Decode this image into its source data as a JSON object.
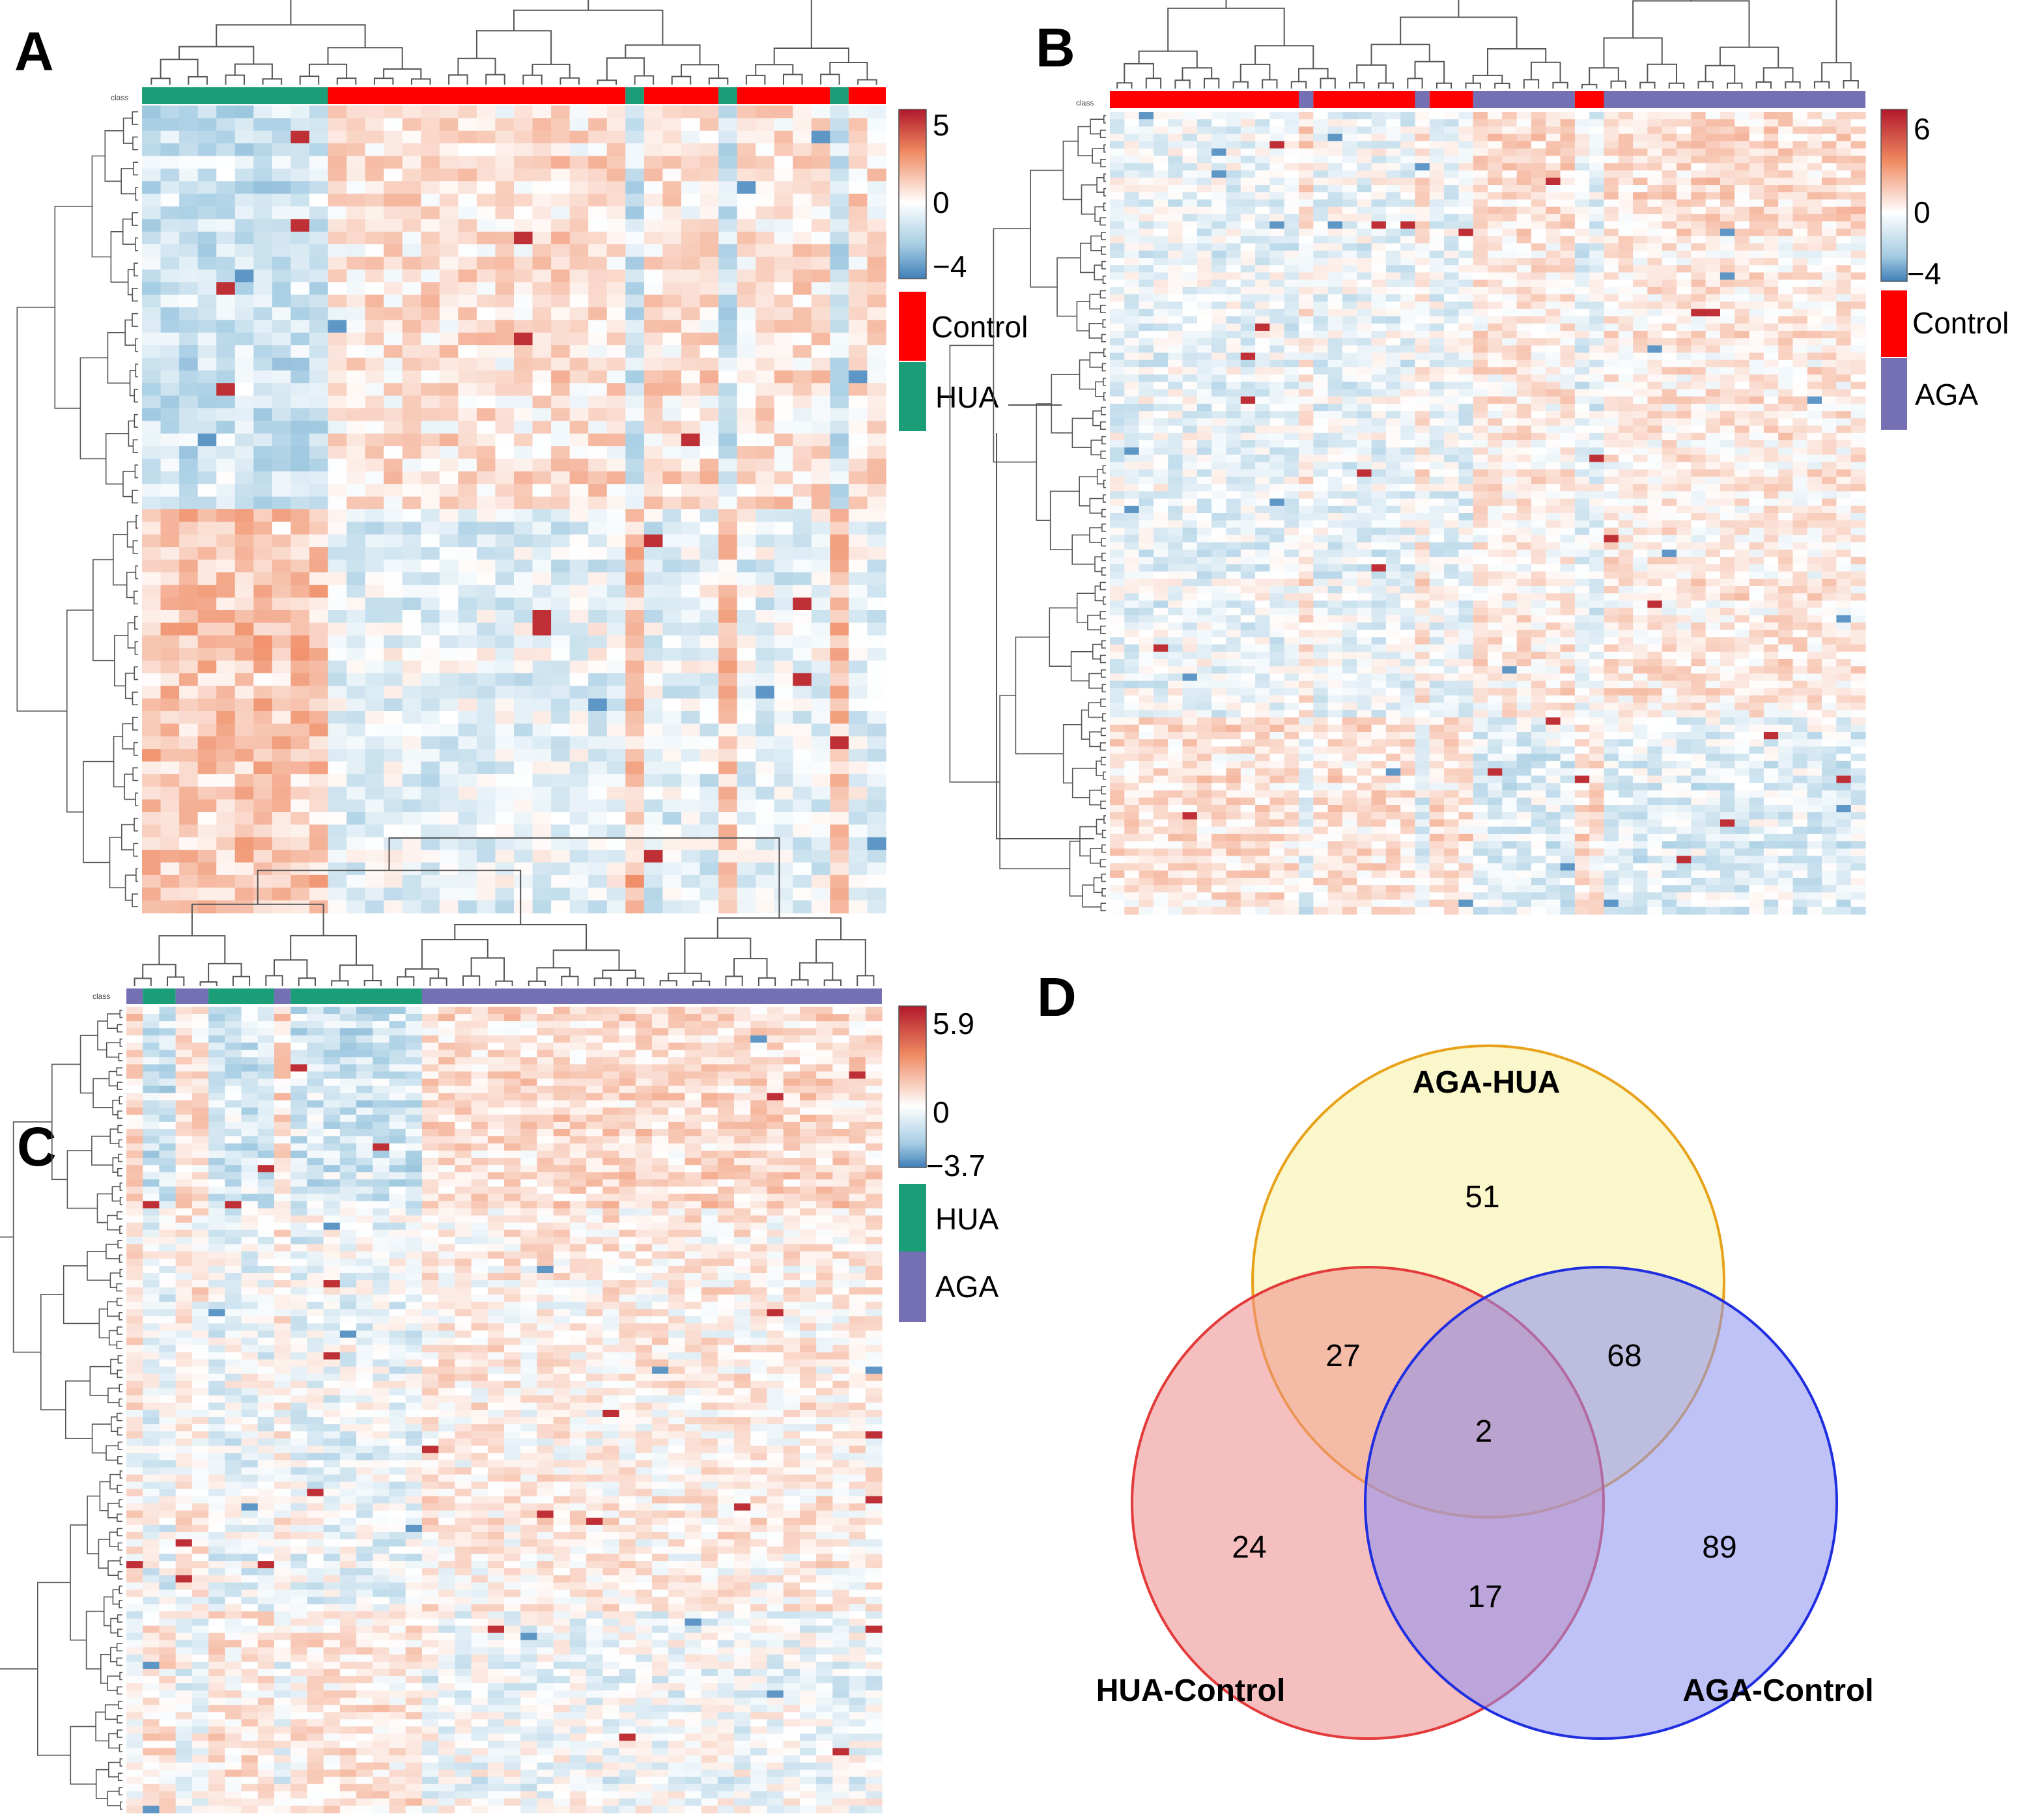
{
  "panels": {
    "A": "A",
    "B": "B",
    "C": "C",
    "D": "D"
  },
  "class_tag": "class",
  "chart_data": [
    {
      "type": "heatmap",
      "panel": "A",
      "rows": 64,
      "group_blocks": [
        {
          "label": "HUA",
          "count": 10
        },
        {
          "label": "Control",
          "count": 16
        },
        {
          "label": "HUA",
          "count": 1
        },
        {
          "label": "Control",
          "count": 4
        },
        {
          "label": "HUA",
          "count": 1
        },
        {
          "label": "Control",
          "count": 5
        },
        {
          "label": "HUA",
          "count": 1
        },
        {
          "label": "Control",
          "count": 2
        }
      ],
      "colorbar": {
        "ticks": [
          "5",
          "0",
          "−4"
        ],
        "max": 5,
        "min": -4
      },
      "legend": [
        {
          "label": "Control",
          "color": "#ff0000"
        },
        {
          "label": "HUA",
          "color": "#1b9e77"
        }
      ]
    },
    {
      "type": "heatmap",
      "panel": "B",
      "rows": 110,
      "group_blocks": [
        {
          "label": "Control",
          "count": 13
        },
        {
          "label": "AGA",
          "count": 1
        },
        {
          "label": "Control",
          "count": 7
        },
        {
          "label": "AGA",
          "count": 1
        },
        {
          "label": "Control",
          "count": 3
        },
        {
          "label": "AGA",
          "count": 7
        },
        {
          "label": "Control",
          "count": 2
        },
        {
          "label": "AGA",
          "count": 18
        }
      ],
      "colorbar": {
        "ticks": [
          "6",
          "0",
          "−4"
        ],
        "max": 6,
        "min": -4
      },
      "legend": [
        {
          "label": "Control",
          "color": "#ff0000"
        },
        {
          "label": "AGA",
          "color": "#7570b3"
        }
      ]
    },
    {
      "type": "heatmap",
      "panel": "C",
      "rows": 112,
      "group_blocks": [
        {
          "label": "AGA",
          "count": 1
        },
        {
          "label": "HUA",
          "count": 2
        },
        {
          "label": "AGA",
          "count": 2
        },
        {
          "label": "HUA",
          "count": 4
        },
        {
          "label": "AGA",
          "count": 1
        },
        {
          "label": "HUA",
          "count": 8
        },
        {
          "label": "AGA",
          "count": 28
        }
      ],
      "colorbar": {
        "ticks": [
          "5.9",
          "0",
          "−3.7"
        ],
        "max": 5.9,
        "min": -3.7
      },
      "legend": [
        {
          "label": "HUA",
          "color": "#1b9e77"
        },
        {
          "label": "AGA",
          "color": "#7570b3"
        }
      ]
    },
    {
      "type": "venn",
      "panel": "D",
      "sets": [
        {
          "name": "AGA-HUA",
          "color": "#f5f1a0",
          "stroke": "#e8a21a"
        },
        {
          "name": "HUA-Control",
          "color": "#ef8a8a",
          "stroke": "#e33a3a"
        },
        {
          "name": "AGA-Control",
          "color": "#8b8ff0",
          "stroke": "#1f2ee0"
        }
      ],
      "regions": [
        {
          "sets": [
            "AGA-HUA"
          ],
          "value": 51
        },
        {
          "sets": [
            "AGA-HUA",
            "HUA-Control"
          ],
          "value": 27
        },
        {
          "sets": [
            "AGA-HUA",
            "AGA-Control"
          ],
          "value": 68
        },
        {
          "sets": [
            "AGA-HUA",
            "HUA-Control",
            "AGA-Control"
          ],
          "value": 2
        },
        {
          "sets": [
            "HUA-Control"
          ],
          "value": 24
        },
        {
          "sets": [
            "HUA-Control",
            "AGA-Control"
          ],
          "value": 17
        },
        {
          "sets": [
            "AGA-Control"
          ],
          "value": 89
        }
      ]
    }
  ]
}
